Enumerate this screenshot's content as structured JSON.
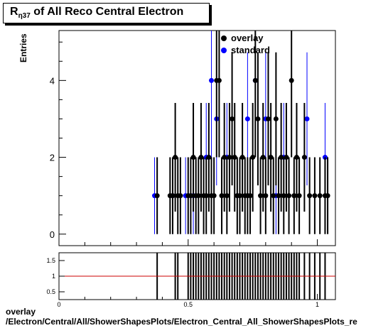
{
  "title": {
    "main": "R",
    "sub": "η37",
    "rest": " of All Reco Central Electron"
  },
  "footer": {
    "line1": "overlay",
    "line2": "/Electron/Central/All/ShowerShapesPlots/Electron_Central_All_ShowerShapesPlots_re"
  },
  "colors": {
    "overlay": "#000000",
    "standard": "#0000ff",
    "ratio_line": "#cc0000"
  },
  "chart_data": [
    {
      "type": "scatter",
      "ylabel": "Entries",
      "xlim": [
        0,
        1.07
      ],
      "ylim": [
        -0.3,
        5.3
      ],
      "yticks": [
        0,
        2,
        4
      ],
      "legend": {
        "position": "top-right",
        "entries": [
          "overlay",
          "standard"
        ]
      },
      "series": [
        {
          "name": "overlay",
          "points": [
            [
              0.38,
              1
            ],
            [
              0.43,
              1
            ],
            [
              0.44,
              1
            ],
            [
              0.45,
              2
            ],
            [
              0.46,
              1
            ],
            [
              0.47,
              1
            ],
            [
              0.5,
              1
            ],
            [
              0.51,
              1
            ],
            [
              0.52,
              2
            ],
            [
              0.53,
              1
            ],
            [
              0.54,
              1
            ],
            [
              0.55,
              2
            ],
            [
              0.56,
              1
            ],
            [
              0.57,
              1
            ],
            [
              0.58,
              2
            ],
            [
              0.59,
              1
            ],
            [
              0.6,
              1
            ],
            [
              0.61,
              4
            ],
            [
              0.62,
              4
            ],
            [
              0.63,
              1
            ],
            [
              0.64,
              2
            ],
            [
              0.65,
              1
            ],
            [
              0.66,
              2
            ],
            [
              0.67,
              3
            ],
            [
              0.68,
              2
            ],
            [
              0.69,
              1
            ],
            [
              0.7,
              1
            ],
            [
              0.71,
              2
            ],
            [
              0.72,
              1
            ],
            [
              0.73,
              1
            ],
            [
              0.74,
              1
            ],
            [
              0.75,
              2
            ],
            [
              0.76,
              4
            ],
            [
              0.77,
              3
            ],
            [
              0.78,
              1
            ],
            [
              0.79,
              2
            ],
            [
              0.8,
              1
            ],
            [
              0.81,
              3
            ],
            [
              0.82,
              2
            ],
            [
              0.83,
              1
            ],
            [
              0.84,
              3
            ],
            [
              0.85,
              1
            ],
            [
              0.86,
              2
            ],
            [
              0.87,
              1
            ],
            [
              0.88,
              2
            ],
            [
              0.89,
              1
            ],
            [
              0.9,
              4
            ],
            [
              0.91,
              1
            ],
            [
              0.92,
              2
            ],
            [
              0.93,
              1
            ],
            [
              0.95,
              2
            ],
            [
              0.97,
              1
            ],
            [
              0.99,
              1
            ],
            [
              1.01,
              1
            ],
            [
              1.03,
              1
            ],
            [
              1.04,
              1
            ]
          ]
        },
        {
          "name": "standard",
          "points": [
            [
              0.37,
              1
            ],
            [
              0.44,
              1
            ],
            [
              0.49,
              1
            ],
            [
              0.52,
              1
            ],
            [
              0.57,
              2
            ],
            [
              0.59,
              4
            ],
            [
              0.61,
              3
            ],
            [
              0.65,
              2
            ],
            [
              0.69,
              1
            ],
            [
              0.73,
              3
            ],
            [
              0.76,
              4
            ],
            [
              0.8,
              3
            ],
            [
              0.84,
              1
            ],
            [
              0.87,
              2
            ],
            [
              0.96,
              3
            ],
            [
              1.03,
              2
            ]
          ]
        }
      ]
    },
    {
      "type": "bar",
      "xlim": [
        0,
        1.07
      ],
      "ylim": [
        0.25,
        1.75
      ],
      "yticks": [
        0.5,
        1,
        1.5
      ],
      "xticks": [
        0,
        0.5,
        1
      ],
      "reference_line": 1,
      "ratio_x": [
        0.38,
        0.45,
        0.46,
        0.5,
        0.51,
        0.52,
        0.53,
        0.54,
        0.55,
        0.56,
        0.57,
        0.58,
        0.59,
        0.6,
        0.61,
        0.62,
        0.63,
        0.64,
        0.65,
        0.66,
        0.67,
        0.68,
        0.69,
        0.7,
        0.71,
        0.72,
        0.73,
        0.74,
        0.75,
        0.76,
        0.77,
        0.78,
        0.79,
        0.8,
        0.81,
        0.82,
        0.83,
        0.84,
        0.85,
        0.86,
        0.87,
        0.88,
        0.89,
        0.9,
        0.91,
        0.92,
        0.93,
        0.95,
        0.97,
        0.99,
        1.01,
        1.03
      ]
    }
  ]
}
